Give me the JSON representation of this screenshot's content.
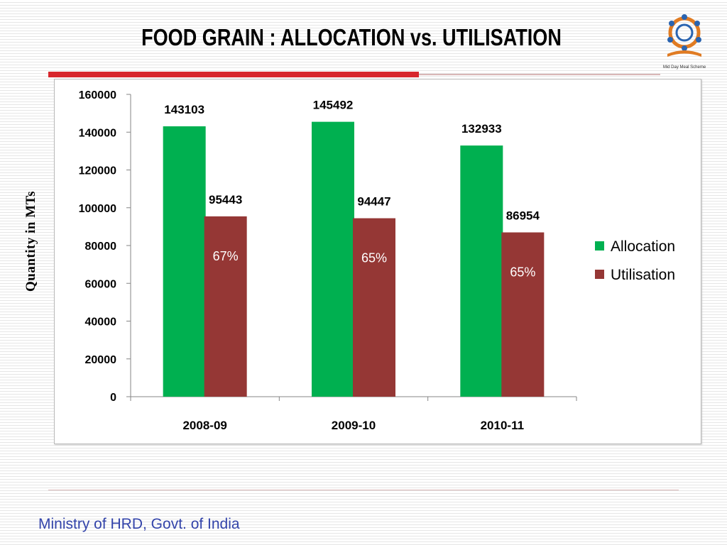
{
  "slide": {
    "title": "FOOD GRAIN : ALLOCATION vs. UTILISATION",
    "footer": "Ministry of HRD, Govt. of India",
    "logo_text": "Mid Day Meal Scheme"
  },
  "colors": {
    "allocation": "#00b050",
    "utilisation": "#953735",
    "accent_red": "#d7262c"
  },
  "chart_data": {
    "type": "bar",
    "title": "",
    "xlabel": "",
    "ylabel": "Quantity in MTs",
    "categories": [
      "2008-09",
      "2009-10",
      "2010-11"
    ],
    "series": [
      {
        "name": "Allocation",
        "values": [
          143103,
          145492,
          132933
        ],
        "color": "#00b050"
      },
      {
        "name": "Utilisation",
        "values": [
          95443,
          94447,
          86954
        ],
        "color": "#953735"
      }
    ],
    "percent_labels": [
      "67%",
      "65%",
      "65%"
    ],
    "ylim": [
      0,
      160000
    ],
    "yticks": [
      0,
      20000,
      40000,
      60000,
      80000,
      100000,
      120000,
      140000,
      160000
    ],
    "legend_position": "right",
    "grid": false
  }
}
